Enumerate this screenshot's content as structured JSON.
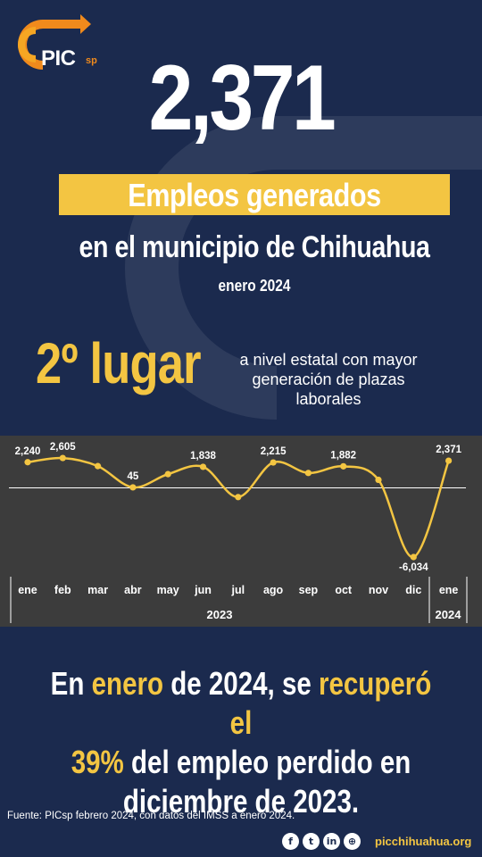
{
  "brand": {
    "logo_text": "PIC",
    "logo_suffix": "sp"
  },
  "headline": {
    "value": "2,371",
    "banner": "Empleos generados",
    "subtitle": "en el municipio de Chihuahua",
    "period": "enero 2024"
  },
  "ranking": {
    "place": "2º lugar",
    "description": "a nivel estatal con mayor generación de plazas laborales"
  },
  "chart_data": {
    "type": "line",
    "categories": [
      "ene",
      "feb",
      "mar",
      "abr",
      "may",
      "jun",
      "jul",
      "ago",
      "sep",
      "oct",
      "nov",
      "dic",
      "ene"
    ],
    "group_labels": [
      "2023",
      "2024"
    ],
    "values": [
      2240,
      2605,
      1900,
      45,
      1200,
      1838,
      -800,
      2215,
      1300,
      1882,
      700,
      -6034,
      2371
    ],
    "data_labels": [
      "2,240",
      "2,605",
      "",
      "45",
      "",
      "1,838",
      "",
      "2,215",
      "",
      "1,882",
      "",
      "-6,034",
      "2,371"
    ],
    "ylim": [
      -6500,
      3000
    ],
    "grid": false,
    "zero_line": true,
    "colors": {
      "line": "#f3c542",
      "marker": "#f3c542",
      "background": "#3c3c3c",
      "text": "#ffffff"
    }
  },
  "conclusion": {
    "l1_pre": "En ",
    "l1_hl1": "enero",
    "l1_mid": " de 2024, se ",
    "l1_hl2": "recuperó el",
    "l2_hl": "39%",
    "l2_rest": " del empleo perdido en",
    "l3": "diciembre de 2023."
  },
  "footer": {
    "source": "Fuente: PICsp febrero 2024, con datos del IMSS a enero 2024.",
    "social_icons": [
      "facebook-icon",
      "twitter-icon",
      "linkedin-icon",
      "web-icon"
    ],
    "website": "picchihuahua.org"
  },
  "colors": {
    "background": "#1b2a4e",
    "accent": "#f3c542",
    "logo_orange": "#f08a1c"
  }
}
